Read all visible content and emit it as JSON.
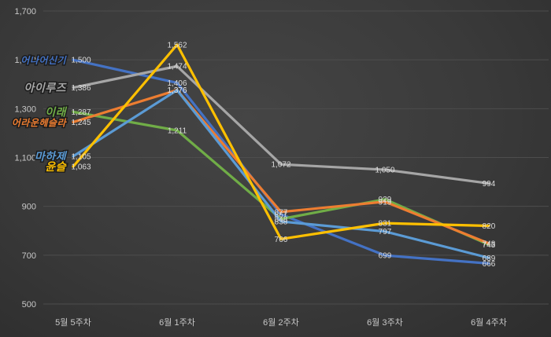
{
  "chart_data": {
    "type": "line",
    "title": "",
    "xlabel": "",
    "ylabel": "",
    "grid": true,
    "legend_position": "left-inline-series-labels",
    "categories": [
      "5월 5주차",
      "6월 1주차",
      "6월 2주차",
      "6월 3주차",
      "6월 4주차"
    ],
    "series": [
      {
        "name": "어나어신기",
        "color": "#4472C4",
        "values": [
          1500,
          1406,
          867,
          699,
          666
        ]
      },
      {
        "name": "아이루즈",
        "color": "#A6A6A6",
        "values": [
          1386,
          1474,
          1072,
          1050,
          994
        ]
      },
      {
        "name": "이래",
        "color": "#70AD47",
        "values": [
          1287,
          1211,
          848,
          929,
          743
        ]
      },
      {
        "name": "어라운헤슬라",
        "color": "#ED7D31",
        "values": [
          1245,
          1376,
          877,
          919,
          748
        ]
      },
      {
        "name": "마하제",
        "color": "#5B9BD5",
        "values": [
          1105,
          1376,
          838,
          797,
          689
        ]
      },
      {
        "name": "윤슬",
        "color": "#FFC000",
        "values": [
          1063,
          1562,
          766,
          831,
          820
        ]
      }
    ],
    "ylim": [
      500,
      1700
    ],
    "ytick_step": 200,
    "yticks": [
      1700,
      1500,
      1300,
      1100,
      900,
      700,
      500
    ],
    "data_labels_visible": true
  },
  "colors": {
    "background": "#3a3a3a",
    "gridline": "#4d4d4d",
    "axis_text": "#c8c8c8",
    "data_label_text": "#dcdcdc"
  }
}
